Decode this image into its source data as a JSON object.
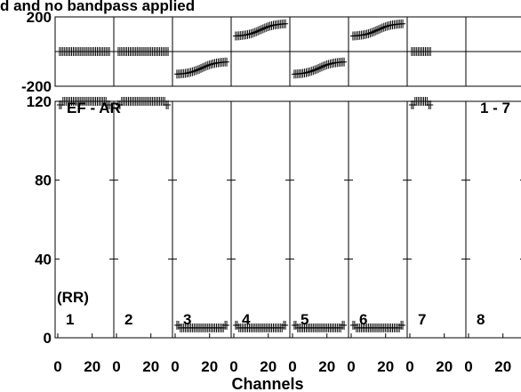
{
  "chart_data": {
    "type": "scatter",
    "title": "d and no bandpass applied",
    "xlabel": "Channels",
    "panel_label": "EF - AR",
    "range_label": "1 - 7",
    "polarization_label": "(RR)",
    "panel_numbers": [
      "1",
      "2",
      "3",
      "4",
      "5",
      "6",
      "7",
      "8"
    ],
    "x_ticks": [
      "0",
      "20"
    ],
    "x_range": [
      0,
      31
    ],
    "phase_ylim": [
      -200,
      200
    ],
    "phase_ticks": [
      "200",
      "-200"
    ],
    "amp_ylim": [
      0,
      120
    ],
    "amp_ticks": [
      "120",
      "80",
      "40",
      "0"
    ],
    "grid": "false",
    "series_by_panel": [
      {
        "panel": "1",
        "phase": 0,
        "phase_span": [
          0,
          0
        ],
        "amp": 120,
        "channels": 30
      },
      {
        "panel": "2",
        "phase": 0,
        "phase_span": [
          0,
          0
        ],
        "amp": 120,
        "channels": 30
      },
      {
        "panel": "3",
        "phase": -95,
        "phase_span": [
          -130,
          -60
        ],
        "amp": 5,
        "channels": 30
      },
      {
        "panel": "4",
        "phase": 125,
        "phase_span": [
          90,
          160
        ],
        "amp": 5,
        "channels": 30
      },
      {
        "panel": "5",
        "phase": -95,
        "phase_span": [
          -130,
          -60
        ],
        "amp": 5,
        "channels": 30
      },
      {
        "panel": "6",
        "phase": 125,
        "phase_span": [
          90,
          160
        ],
        "amp": 5,
        "channels": 30
      },
      {
        "panel": "7",
        "phase": 0,
        "phase_span": [
          0,
          0
        ],
        "amp": 120,
        "channels": 12
      },
      {
        "panel": "8",
        "phase": null,
        "phase_span": null,
        "amp": null,
        "channels": 0
      }
    ]
  }
}
